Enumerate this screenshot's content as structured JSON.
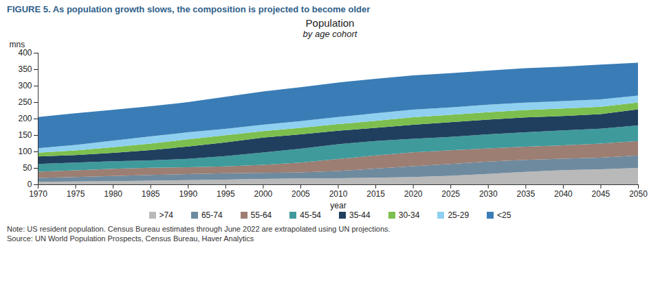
{
  "chart_data": {
    "type": "area",
    "stacked": true,
    "grid": false,
    "figure_title": "FIGURE 5. As population growth slows, the composition is projected to become older",
    "title": "Population",
    "subtitle": "by age cohort",
    "x_label": "year",
    "y_label": "mns",
    "note": "Note: US resident population. Census Bureau estimates through June 2022 are extrapolated using UN projections.",
    "source": "Source: UN World Population Prospects, Census Bureau, Haver Analytics",
    "legend": "bottom",
    "x": [
      1970,
      1975,
      1980,
      1985,
      1990,
      1995,
      2000,
      2005,
      2010,
      2015,
      2020,
      2025,
      2030,
      2035,
      2040,
      2045,
      2050
    ],
    "xlim": [
      1970,
      2050
    ],
    "xticks": [
      1970,
      1975,
      1980,
      1985,
      1990,
      1995,
      2000,
      2005,
      2010,
      2015,
      2020,
      2025,
      2030,
      2035,
      2040,
      2045,
      2050
    ],
    "ylim": [
      0,
      400
    ],
    "yticks": [
      0,
      50,
      100,
      150,
      200,
      250,
      300,
      350,
      400
    ],
    "series": [
      {
        "name": ">74",
        "color": "#b9b9b9",
        "values": [
          7.6,
          8.7,
          10.0,
          11.5,
          13.1,
          14.8,
          16.6,
          18.0,
          18.8,
          20.3,
          22.5,
          26.0,
          32.0,
          38.0,
          43.0,
          46.0,
          50.0
        ]
      },
      {
        "name": "65-74",
        "color": "#6e8a9f",
        "values": [
          12.4,
          13.9,
          15.6,
          17.0,
          18.1,
          18.8,
          18.4,
          18.5,
          21.7,
          27.6,
          32.5,
          36.0,
          37.5,
          36.5,
          35.0,
          35.5,
          38.0
        ]
      },
      {
        "name": "55-64",
        "color": "#9c7e72",
        "values": [
          18.6,
          20.0,
          21.7,
          22.1,
          21.1,
          21.1,
          24.3,
          29.5,
          36.5,
          40.2,
          42.5,
          41.5,
          40.0,
          40.0,
          41.0,
          42.5,
          44.0
        ]
      },
      {
        "name": "45-54",
        "color": "#3f9a9c",
        "values": [
          23.3,
          23.8,
          22.8,
          22.5,
          25.2,
          31.0,
          37.7,
          42.5,
          45.0,
          43.7,
          41.0,
          41.0,
          42.5,
          44.0,
          45.0,
          45.5,
          47.0
        ]
      },
      {
        "name": "35-44",
        "color": "#203f5e",
        "values": [
          23.1,
          22.8,
          25.6,
          31.0,
          37.6,
          42.0,
          45.2,
          43.5,
          41.0,
          40.0,
          42.5,
          44.5,
          45.0,
          45.0,
          44.0,
          44.0,
          49.0
        ]
      },
      {
        "name": "30-34",
        "color": "#7cbf4f",
        "values": [
          11.4,
          14.0,
          17.5,
          20.0,
          21.9,
          22.0,
          20.0,
          19.8,
          20.1,
          21.5,
          23.0,
          22.5,
          22.5,
          22.5,
          22.5,
          22.5,
          21.0
        ]
      },
      {
        "name": "25-29",
        "color": "#8fd0f0",
        "values": [
          13.5,
          16.5,
          19.5,
          21.5,
          21.3,
          19.0,
          19.3,
          20.5,
          21.4,
          22.6,
          23.0,
          22.5,
          22.5,
          22.5,
          22.5,
          22.5,
          21.0
        ]
      },
      {
        "name": "<25",
        "color": "#3a7db6",
        "values": [
          95.0,
          96.3,
          94.0,
          92.0,
          91.5,
          97.6,
          100.7,
          103.2,
          105.0,
          105.0,
          104.5,
          104.0,
          104.0,
          104.5,
          105.0,
          105.5,
          100.0
        ]
      }
    ]
  }
}
